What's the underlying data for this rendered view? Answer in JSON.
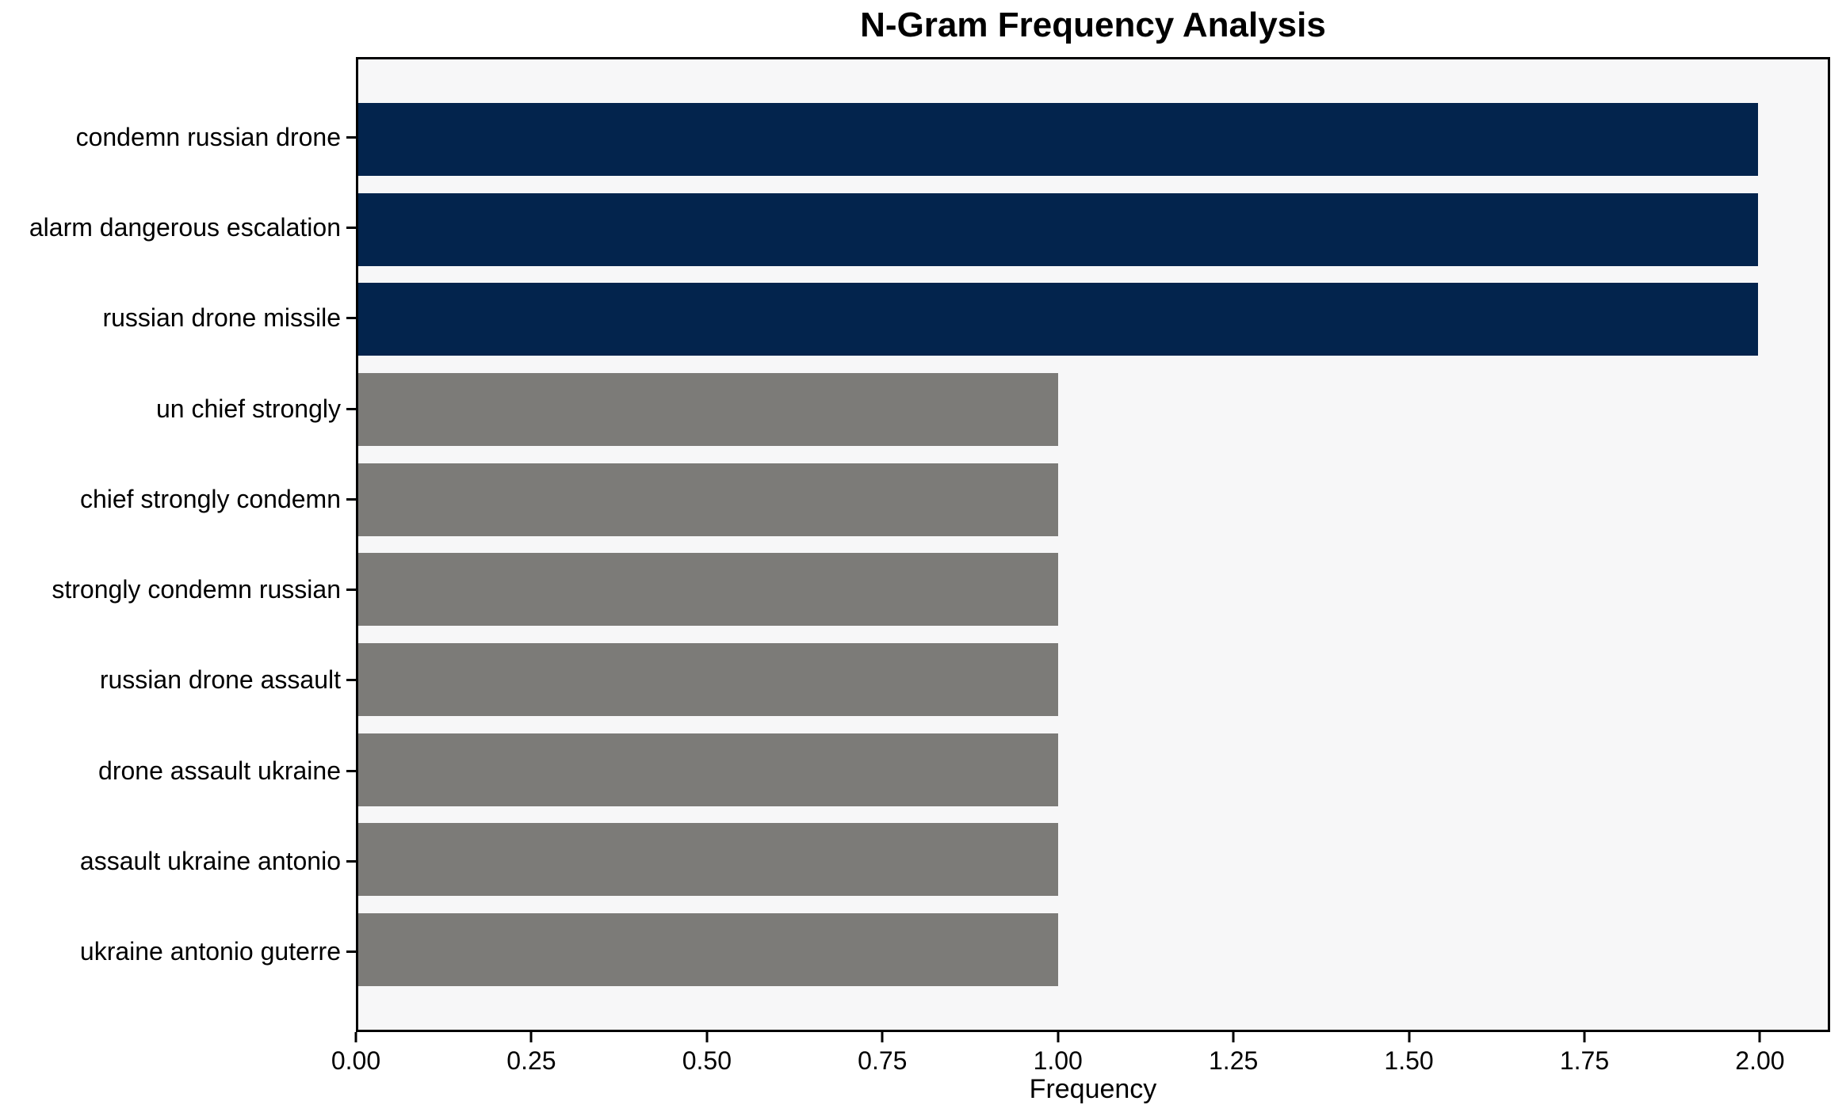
{
  "chart_data": {
    "type": "bar",
    "orientation": "horizontal",
    "title": "N-Gram Frequency Analysis",
    "xlabel": "Frequency",
    "ylabel": "",
    "categories": [
      "condemn russian drone",
      "alarm dangerous escalation",
      "russian drone missile",
      "un chief strongly",
      "chief strongly condemn",
      "strongly condemn russian",
      "russian drone assault",
      "drone assault ukraine",
      "assault ukraine antonio",
      "ukraine antonio guterre"
    ],
    "values": [
      2,
      2,
      2,
      1,
      1,
      1,
      1,
      1,
      1,
      1
    ],
    "bar_colors": [
      "#03244d",
      "#03244d",
      "#03244d",
      "#7c7b78",
      "#7c7b78",
      "#7c7b78",
      "#7c7b78",
      "#7c7b78",
      "#7c7b78",
      "#7c7b78"
    ],
    "colors": {
      "highlight": "#03244d",
      "normal": "#7c7b78",
      "plot_background": "#f7f7f8",
      "figure_background": "#ffffff",
      "spine": "#000000"
    },
    "xlim": [
      0,
      2.1
    ],
    "xticks": [
      "0.00",
      "0.25",
      "0.50",
      "0.75",
      "1.00",
      "1.25",
      "1.50",
      "1.75",
      "2.00"
    ],
    "grid": false,
    "legend": null,
    "bar_height_fraction": 0.8
  }
}
